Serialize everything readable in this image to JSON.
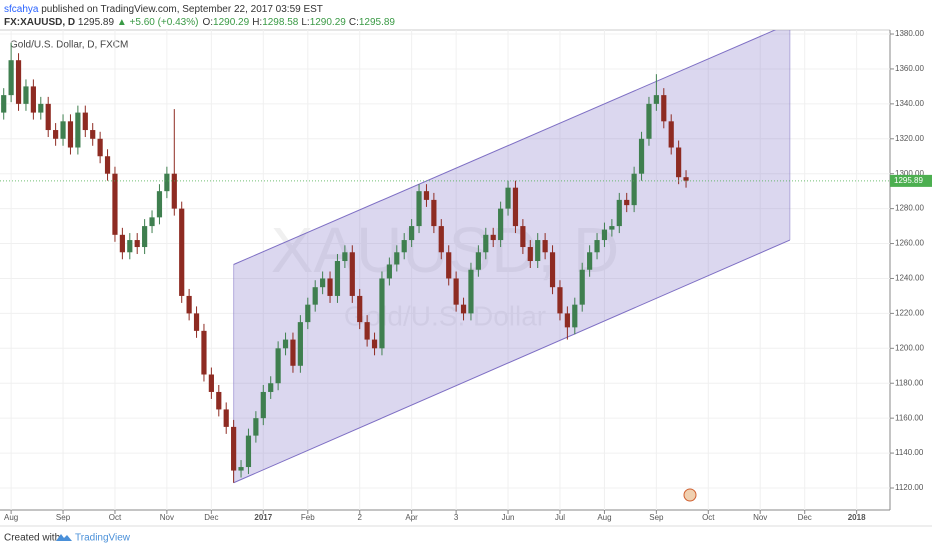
{
  "header": {
    "author": "sfcahya",
    "published": "published on TradingView.com, September 22, 2017 03:59 EST",
    "symbol": "FX:XAUUSD, D",
    "price": "1295.89",
    "change": "▲ +5.60 (+0.43%)",
    "ohlc": [
      {
        "label": "O:",
        "value": "1290.29"
      },
      {
        "label": "H:",
        "value": "1298.58"
      },
      {
        "label": "L:",
        "value": "1290.29"
      },
      {
        "label": "C:",
        "value": "1295.89"
      }
    ]
  },
  "footer": {
    "created": "Created with",
    "brand": "TradingView"
  },
  "chart_data": {
    "type": "candlestick",
    "title": "Gold/U.S. Dollar, D, FXCM",
    "watermark": "XAUUSD, D",
    "watermark_sub": "Gold/U.S. Dollar",
    "categories": [
      null,
      "Aug",
      null,
      null,
      null,
      null,
      null,
      null,
      "Sep",
      null,
      null,
      null,
      null,
      null,
      null,
      "Oct",
      null,
      null,
      null,
      null,
      null,
      null,
      "Nov",
      null,
      null,
      null,
      null,
      null,
      "Dec",
      null,
      null,
      null,
      null,
      null,
      null,
      "2017",
      null,
      null,
      null,
      null,
      null,
      "Feb",
      null,
      null,
      null,
      null,
      null,
      null,
      "2",
      null,
      null,
      null,
      null,
      null,
      null,
      "Apr",
      null,
      null,
      null,
      null,
      null,
      "3",
      null,
      null,
      null,
      null,
      null,
      null,
      "Jun",
      null,
      null,
      null,
      null,
      null,
      null,
      "Jul",
      null,
      null,
      null,
      null,
      null,
      "Aug",
      null,
      null,
      null,
      null,
      null,
      null,
      "Sep",
      null,
      null,
      null,
      null,
      null,
      null,
      "Oct",
      null,
      null,
      null,
      null,
      null,
      null,
      "Nov",
      null,
      null,
      null,
      null,
      null,
      "Dec",
      null,
      null,
      null,
      null,
      null,
      null,
      "2018",
      null,
      null,
      null,
      null
    ],
    "series": [
      {
        "name": "XAUUSD",
        "up_color": "#3f7f4f",
        "down_color": "#8e2b22",
        "open": [
          1335,
          1345,
          1365,
          1340,
          1350,
          1335,
          1340,
          1325,
          1320,
          1330,
          1315,
          1335,
          1325,
          1320,
          1310,
          1300,
          1265,
          1255,
          1262,
          1258,
          1270,
          1275,
          1290,
          1300,
          1280,
          1230,
          1220,
          1210,
          1185,
          1175,
          1165,
          1155,
          1130,
          1132,
          1150,
          1160,
          1175,
          1180,
          1200,
          1205,
          1190,
          1215,
          1225,
          1235,
          1240,
          1230,
          1250,
          1255,
          1230,
          1215,
          1205,
          1200,
          1240,
          1248,
          1255,
          1262,
          1270,
          1290,
          1285,
          1270,
          1255,
          1240,
          1225,
          1220,
          1245,
          1255,
          1265,
          1262,
          1280,
          1292,
          1270,
          1258,
          1250,
          1262,
          1255,
          1235,
          1220,
          1212,
          1225,
          1245,
          1255,
          1262,
          1268,
          1270,
          1285,
          1282,
          1300,
          1320,
          1340,
          1345,
          1330,
          1315,
          1298,
          null,
          null,
          null,
          null,
          null,
          null,
          null,
          null,
          null,
          null,
          null,
          null,
          null,
          null,
          null,
          null,
          null,
          null,
          null,
          null,
          null,
          null,
          null,
          null,
          null,
          null,
          null
        ],
        "high": [
          1349,
          1375,
          1369,
          1354,
          1354,
          1344,
          1344,
          1329,
          1334,
          1334,
          1339,
          1339,
          1329,
          1324,
          1314,
          1304,
          1269,
          1266,
          1266,
          1274,
          1279,
          1294,
          1304,
          1337,
          1284,
          1234,
          1224,
          1214,
          1189,
          1179,
          1169,
          1159,
          1136,
          1154,
          1164,
          1179,
          1184,
          1204,
          1209,
          1209,
          1219,
          1229,
          1239,
          1244,
          1244,
          1254,
          1259,
          1259,
          1234,
          1219,
          1209,
          1244,
          1252,
          1259,
          1266,
          1274,
          1294,
          1294,
          1289,
          1274,
          1259,
          1244,
          1229,
          1249,
          1259,
          1269,
          1269,
          1284,
          1296,
          1296,
          1274,
          1262,
          1266,
          1266,
          1259,
          1239,
          1224,
          1229,
          1249,
          1259,
          1266,
          1272,
          1274,
          1289,
          1289,
          1304,
          1324,
          1344,
          1357,
          1349,
          1334,
          1319,
          1302,
          null,
          null,
          null,
          null,
          null,
          null,
          null,
          null,
          null,
          null,
          null,
          null,
          null,
          null,
          null,
          null,
          null,
          null,
          null,
          null,
          null,
          null,
          null,
          null,
          null,
          null,
          null
        ],
        "low": [
          1331,
          1341,
          1336,
          1336,
          1331,
          1331,
          1321,
          1316,
          1316,
          1311,
          1311,
          1321,
          1316,
          1306,
          1296,
          1261,
          1251,
          1251,
          1254,
          1254,
          1266,
          1271,
          1286,
          1276,
          1226,
          1216,
          1206,
          1181,
          1171,
          1161,
          1151,
          1123,
          1126,
          1128,
          1146,
          1156,
          1171,
          1176,
          1196,
          1186,
          1186,
          1211,
          1221,
          1231,
          1226,
          1226,
          1246,
          1226,
          1211,
          1201,
          1196,
          1196,
          1236,
          1244,
          1251,
          1258,
          1266,
          1281,
          1266,
          1251,
          1236,
          1221,
          1216,
          1216,
          1241,
          1251,
          1258,
          1258,
          1276,
          1266,
          1254,
          1246,
          1246,
          1251,
          1231,
          1216,
          1205,
          1208,
          1221,
          1241,
          1251,
          1258,
          1264,
          1266,
          1278,
          1278,
          1296,
          1316,
          1336,
          1326,
          1311,
          1294,
          1292,
          null,
          null,
          null,
          null,
          null,
          null,
          null,
          null,
          null,
          null,
          null,
          null,
          null,
          null,
          null,
          null,
          null,
          null,
          null,
          null,
          null,
          null,
          null,
          null,
          null,
          null,
          null
        ],
        "close": [
          1345,
          1365,
          1340,
          1350,
          1335,
          1340,
          1325,
          1320,
          1330,
          1315,
          1335,
          1325,
          1320,
          1310,
          1300,
          1265,
          1255,
          1262,
          1258,
          1270,
          1275,
          1290,
          1300,
          1280,
          1230,
          1220,
          1210,
          1185,
          1175,
          1165,
          1155,
          1130,
          1132,
          1150,
          1160,
          1175,
          1180,
          1200,
          1205,
          1190,
          1215,
          1225,
          1235,
          1240,
          1230,
          1250,
          1255,
          1230,
          1215,
          1205,
          1200,
          1240,
          1248,
          1255,
          1262,
          1270,
          1290,
          1285,
          1270,
          1255,
          1240,
          1225,
          1220,
          1245,
          1255,
          1265,
          1262,
          1280,
          1292,
          1270,
          1258,
          1250,
          1262,
          1255,
          1235,
          1220,
          1212,
          1225,
          1245,
          1255,
          1262,
          1268,
          1270,
          1285,
          1282,
          1300,
          1320,
          1340,
          1345,
          1330,
          1315,
          1298,
          1296,
          null,
          null,
          null,
          null,
          null,
          null,
          null,
          null,
          null,
          null,
          null,
          null,
          null,
          null,
          null,
          null,
          null,
          null,
          null,
          null,
          null,
          null,
          null,
          null,
          null,
          null,
          null
        ]
      }
    ],
    "last_price": 1295.89,
    "last_price_color": "#4caf50",
    "channel": {
      "start_index": 31,
      "end_index": 106,
      "upper": [
        1248,
        1386
      ],
      "lower": [
        1123,
        1262
      ],
      "color": "#7e6fc4"
    },
    "ylim": [
      1107.4,
      1382.3
    ],
    "yticks": [
      {
        "value": 1120,
        "label": "1120.00"
      },
      {
        "value": 1140,
        "label": "1140.00"
      },
      {
        "value": 1160,
        "label": "1160.00"
      },
      {
        "value": 1180,
        "label": "1180.00"
      },
      {
        "value": 1200,
        "label": "1200.00"
      },
      {
        "value": 1220,
        "label": "1220.00"
      },
      {
        "value": 1240,
        "label": "1240.00"
      },
      {
        "value": 1260,
        "label": "1260.00"
      },
      {
        "value": 1280,
        "label": "1280.00"
      },
      {
        "value": 1300,
        "label": "1300.00"
      },
      {
        "value": 1320,
        "label": "1320.00"
      },
      {
        "value": 1340,
        "label": "1340.00"
      },
      {
        "value": 1360,
        "label": "1360.00"
      },
      {
        "value": 1380,
        "label": "1380.00"
      }
    ]
  }
}
